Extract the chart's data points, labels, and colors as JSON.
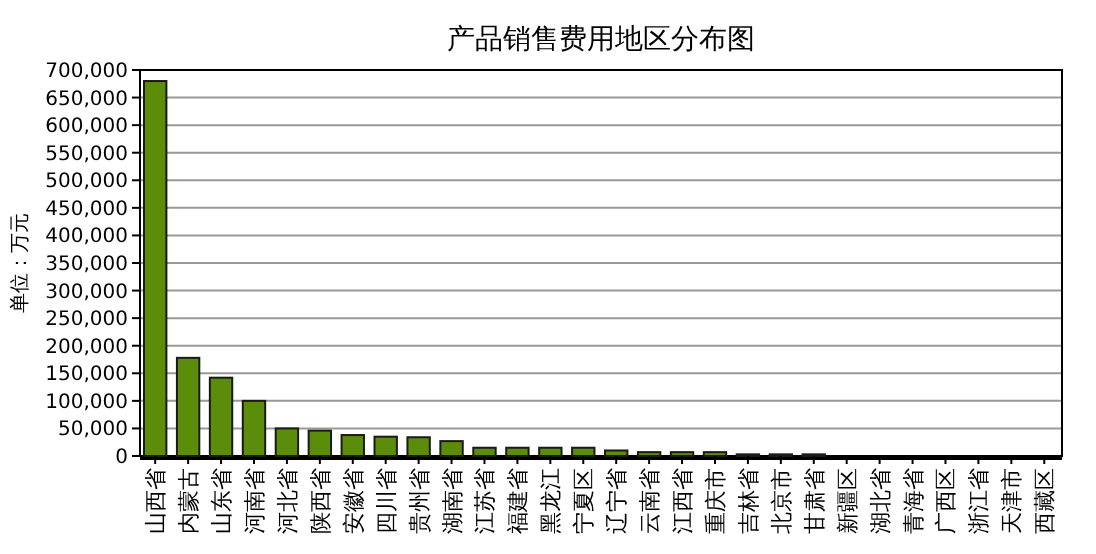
{
  "chart_data": {
    "type": "bar",
    "title": "产品销售费用地区分布图",
    "ylabel": "单位：万元",
    "categories": [
      "山西省",
      "内蒙古",
      "山东省",
      "河南省",
      "河北省",
      "陕西省",
      "安徽省",
      "四川省",
      "贵州省",
      "湖南省",
      "江苏省",
      "福建省",
      "黑龙江",
      "宁夏区",
      "辽宁省",
      "云南省",
      "江西省",
      "重庆市",
      "吉林省",
      "北京市",
      "甘肃省",
      "新疆区",
      "湖北省",
      "青海省",
      "广西区",
      "浙江省",
      "天津市",
      "西藏区"
    ],
    "values": [
      680000,
      178000,
      142000,
      100000,
      50000,
      46000,
      38000,
      35000,
      34000,
      27000,
      15000,
      15000,
      15000,
      15000,
      10000,
      7000,
      7000,
      7000,
      3000,
      3000,
      3000,
      0,
      0,
      0,
      0,
      0,
      0,
      0
    ],
    "color": "#5b8c0a",
    "ylim": [
      0,
      700000
    ],
    "yticks": [
      {
        "value": 0,
        "label": "0"
      },
      {
        "value": 50000,
        "label": "50,000"
      },
      {
        "value": 100000,
        "label": "100,000"
      },
      {
        "value": 150000,
        "label": "150,000"
      },
      {
        "value": 200000,
        "label": "200,000"
      },
      {
        "value": 250000,
        "label": "250,000"
      },
      {
        "value": 300000,
        "label": "300,000"
      },
      {
        "value": 350000,
        "label": "350,000"
      },
      {
        "value": 400000,
        "label": "400,000"
      },
      {
        "value": 450000,
        "label": "450,000"
      },
      {
        "value": 500000,
        "label": "500,000"
      },
      {
        "value": 550000,
        "label": "550,000"
      },
      {
        "value": 600000,
        "label": "600,000"
      },
      {
        "value": 650000,
        "label": "650,000"
      },
      {
        "value": 700000,
        "label": "700,000"
      }
    ],
    "grid": "y"
  }
}
